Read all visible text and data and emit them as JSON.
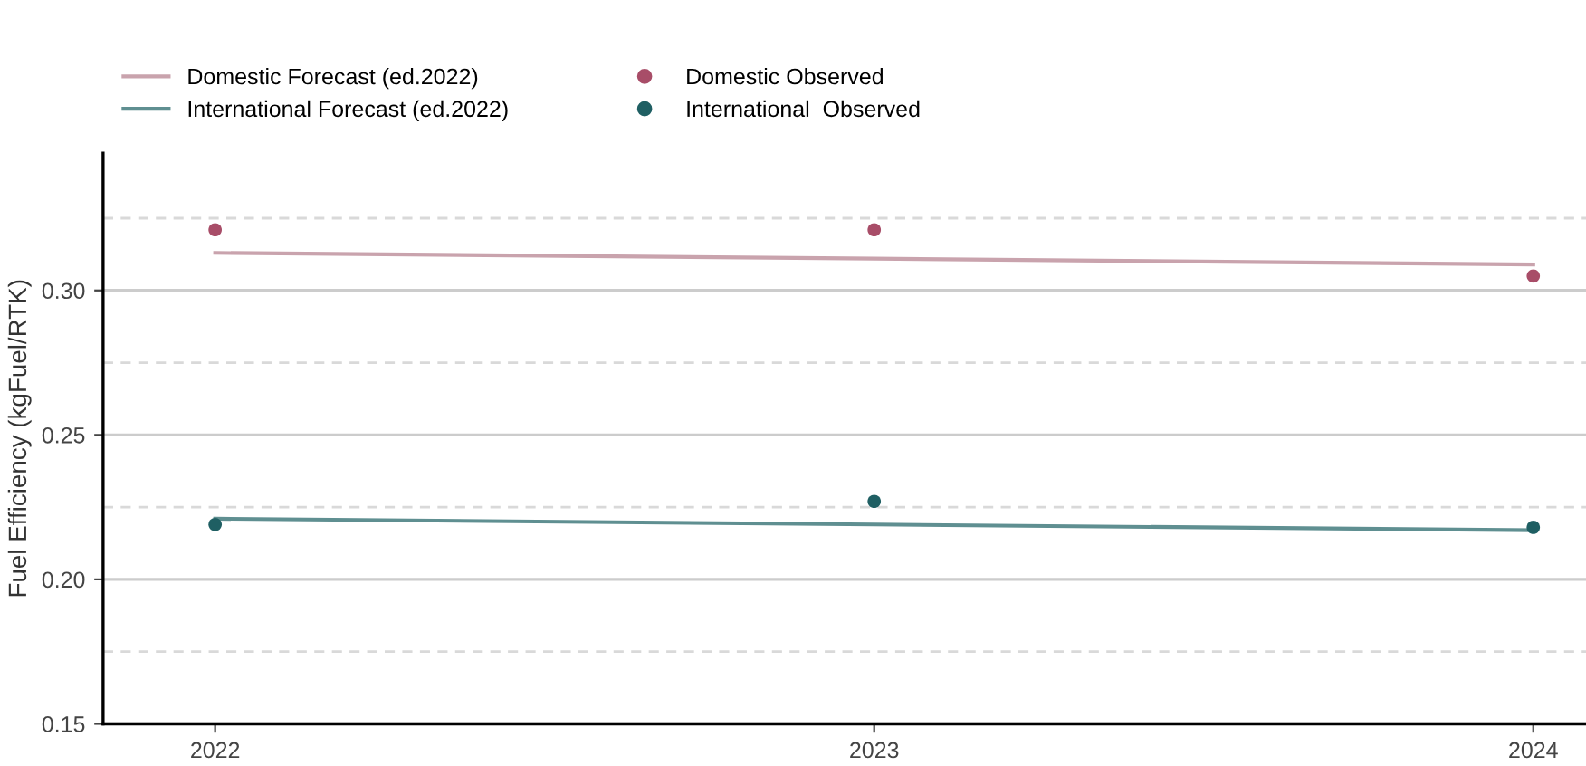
{
  "chart_data": {
    "type": "line",
    "ylabel": "Fuel Efficiency (kgFuel/RTK)",
    "x": [
      2022,
      2023,
      2024
    ],
    "series": [
      {
        "name": "Domestic Forecast (ed.2022)",
        "color": "#c9a3ad",
        "values": [
          0.313,
          0.311,
          0.309
        ]
      },
      {
        "name": "International Forecast (ed.2022)",
        "color": "#5f8f91",
        "values": [
          0.221,
          0.219,
          0.217
        ]
      },
      {
        "name": "Domestic Observed",
        "type": "scatter",
        "color": "#a84d68",
        "values": [
          0.321,
          0.321,
          0.305
        ]
      },
      {
        "name": "International  Observed",
        "type": "scatter",
        "color": "#1f5f63",
        "values": [
          0.219,
          0.227,
          0.218
        ]
      }
    ],
    "xlim": [
      2021.83,
      2024.08
    ],
    "xticks": [
      2022,
      2023,
      2024
    ],
    "ylim": [
      0.15,
      0.3475
    ],
    "yticks": [
      {
        "value": 0.15,
        "label": "0.15"
      },
      {
        "value": 0.2,
        "label": "0.20"
      },
      {
        "value": 0.25,
        "label": "0.25"
      },
      {
        "value": 0.3,
        "label": "0.30"
      }
    ],
    "grid": "y",
    "legend": "top left",
    "ref_lines": [
      {
        "axis": "y",
        "value": 0.175,
        "color": "#d9d9d9",
        "line_style": "dashed"
      },
      {
        "axis": "y",
        "value": 0.225,
        "color": "#d9d9d9",
        "line_style": "dashed"
      },
      {
        "axis": "y",
        "value": 0.275,
        "color": "#d9d9d9",
        "line_style": "dashed"
      },
      {
        "axis": "y",
        "value": 0.325,
        "color": "#d9d9d9",
        "line_style": "dashed"
      }
    ]
  }
}
